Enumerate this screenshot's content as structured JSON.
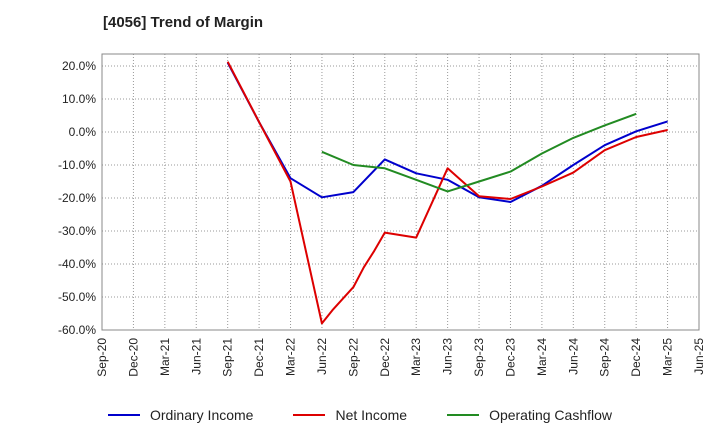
{
  "title": "[4056]  Trend of Margin",
  "chart_data": {
    "type": "line",
    "title": "[4056]  Trend of Margin",
    "xlabel": "",
    "ylabel": "",
    "ylim": [
      -60,
      20
    ],
    "yticks": [
      20,
      10,
      0,
      -10,
      -20,
      -30,
      -40,
      -50,
      -60
    ],
    "ytick_labels": [
      "20.0%",
      "10.0%",
      "0.0%",
      "-10.0%",
      "-20.0%",
      "-30.0%",
      "-40.0%",
      "-50.0%",
      "-60.0%"
    ],
    "xticks": [
      "Sep-20",
      "Dec-20",
      "Mar-21",
      "Jun-21",
      "Sep-21",
      "Dec-21",
      "Mar-22",
      "Jun-22",
      "Sep-22",
      "Dec-22",
      "Mar-23",
      "Jun-23",
      "Sep-23",
      "Dec-23",
      "Mar-24",
      "Jun-24",
      "Sep-24",
      "Dec-24",
      "Mar-25",
      "Jun-25"
    ],
    "grid": true,
    "legend_position": "bottom",
    "series": [
      {
        "name": "Ordinary Income",
        "color": "#0000cc",
        "points": [
          [
            "Sep-21",
            21.0
          ],
          [
            "Dec-21",
            3.0
          ],
          [
            "Mar-22",
            -14.0
          ],
          [
            "Jun-22",
            -19.8
          ],
          [
            "Sep-22",
            -18.2
          ],
          [
            "Dec-22",
            -8.3
          ],
          [
            "Mar-23",
            -12.5
          ],
          [
            "Jun-23",
            -14.5
          ],
          [
            "Sep-23",
            -19.8
          ],
          [
            "Dec-23",
            -21.2
          ],
          [
            "Mar-24",
            -16.3
          ],
          [
            "Jun-24",
            -10.0
          ],
          [
            "Sep-24",
            -4.0
          ],
          [
            "Dec-24",
            0.2
          ],
          [
            "Mar-25",
            3.2
          ]
        ]
      },
      {
        "name": "Net Income",
        "color": "#dd0000",
        "points": [
          [
            "Sep-21",
            21.3
          ],
          [
            "Dec-21",
            3.0
          ],
          [
            "Mar-22",
            -15.0
          ],
          [
            "Jun-22",
            -58.0
          ],
          [
            "Jul-22",
            -54.0
          ],
          [
            "Sep-22",
            -47.0
          ],
          [
            "Oct-22",
            -41.0
          ],
          [
            "Nov-22",
            -36.0
          ],
          [
            "Dec-22",
            -30.5
          ],
          [
            "Mar-23",
            -32.0
          ],
          [
            "Jun-23",
            -11.0
          ],
          [
            "Sep-23",
            -19.5
          ],
          [
            "Dec-23",
            -20.3
          ],
          [
            "Mar-24",
            -16.5
          ],
          [
            "Jun-24",
            -12.3
          ],
          [
            "Sep-24",
            -5.5
          ],
          [
            "Dec-24",
            -1.5
          ],
          [
            "Mar-25",
            0.6
          ]
        ]
      },
      {
        "name": "Operating Cashflow",
        "color": "#228b22",
        "points": [
          [
            "Jun-22",
            -6.0
          ],
          [
            "Sep-22",
            -10.0
          ],
          [
            "Dec-22",
            -11.0
          ],
          [
            "Mar-23",
            -14.5
          ],
          [
            "Jun-23",
            -18.0
          ],
          [
            "Sep-23",
            -15.0
          ],
          [
            "Dec-23",
            -12.0
          ],
          [
            "Mar-24",
            -6.5
          ],
          [
            "Jun-24",
            -1.8
          ],
          [
            "Sep-24",
            2.0
          ],
          [
            "Dec-24",
            5.5
          ]
        ]
      }
    ]
  }
}
